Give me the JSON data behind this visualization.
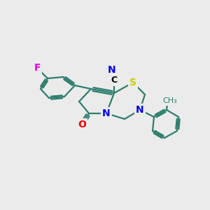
{
  "bg_color": "#ebebeb",
  "bond_color": "#2d7d6e",
  "bond_width": 1.6,
  "atom_colors": {
    "F": "#ee00ee",
    "N": "#0000ee",
    "O": "#ee0000",
    "S": "#cccc00",
    "C_black": "#000000"
  },
  "figsize": [
    3.0,
    3.0
  ],
  "dpi": 100
}
